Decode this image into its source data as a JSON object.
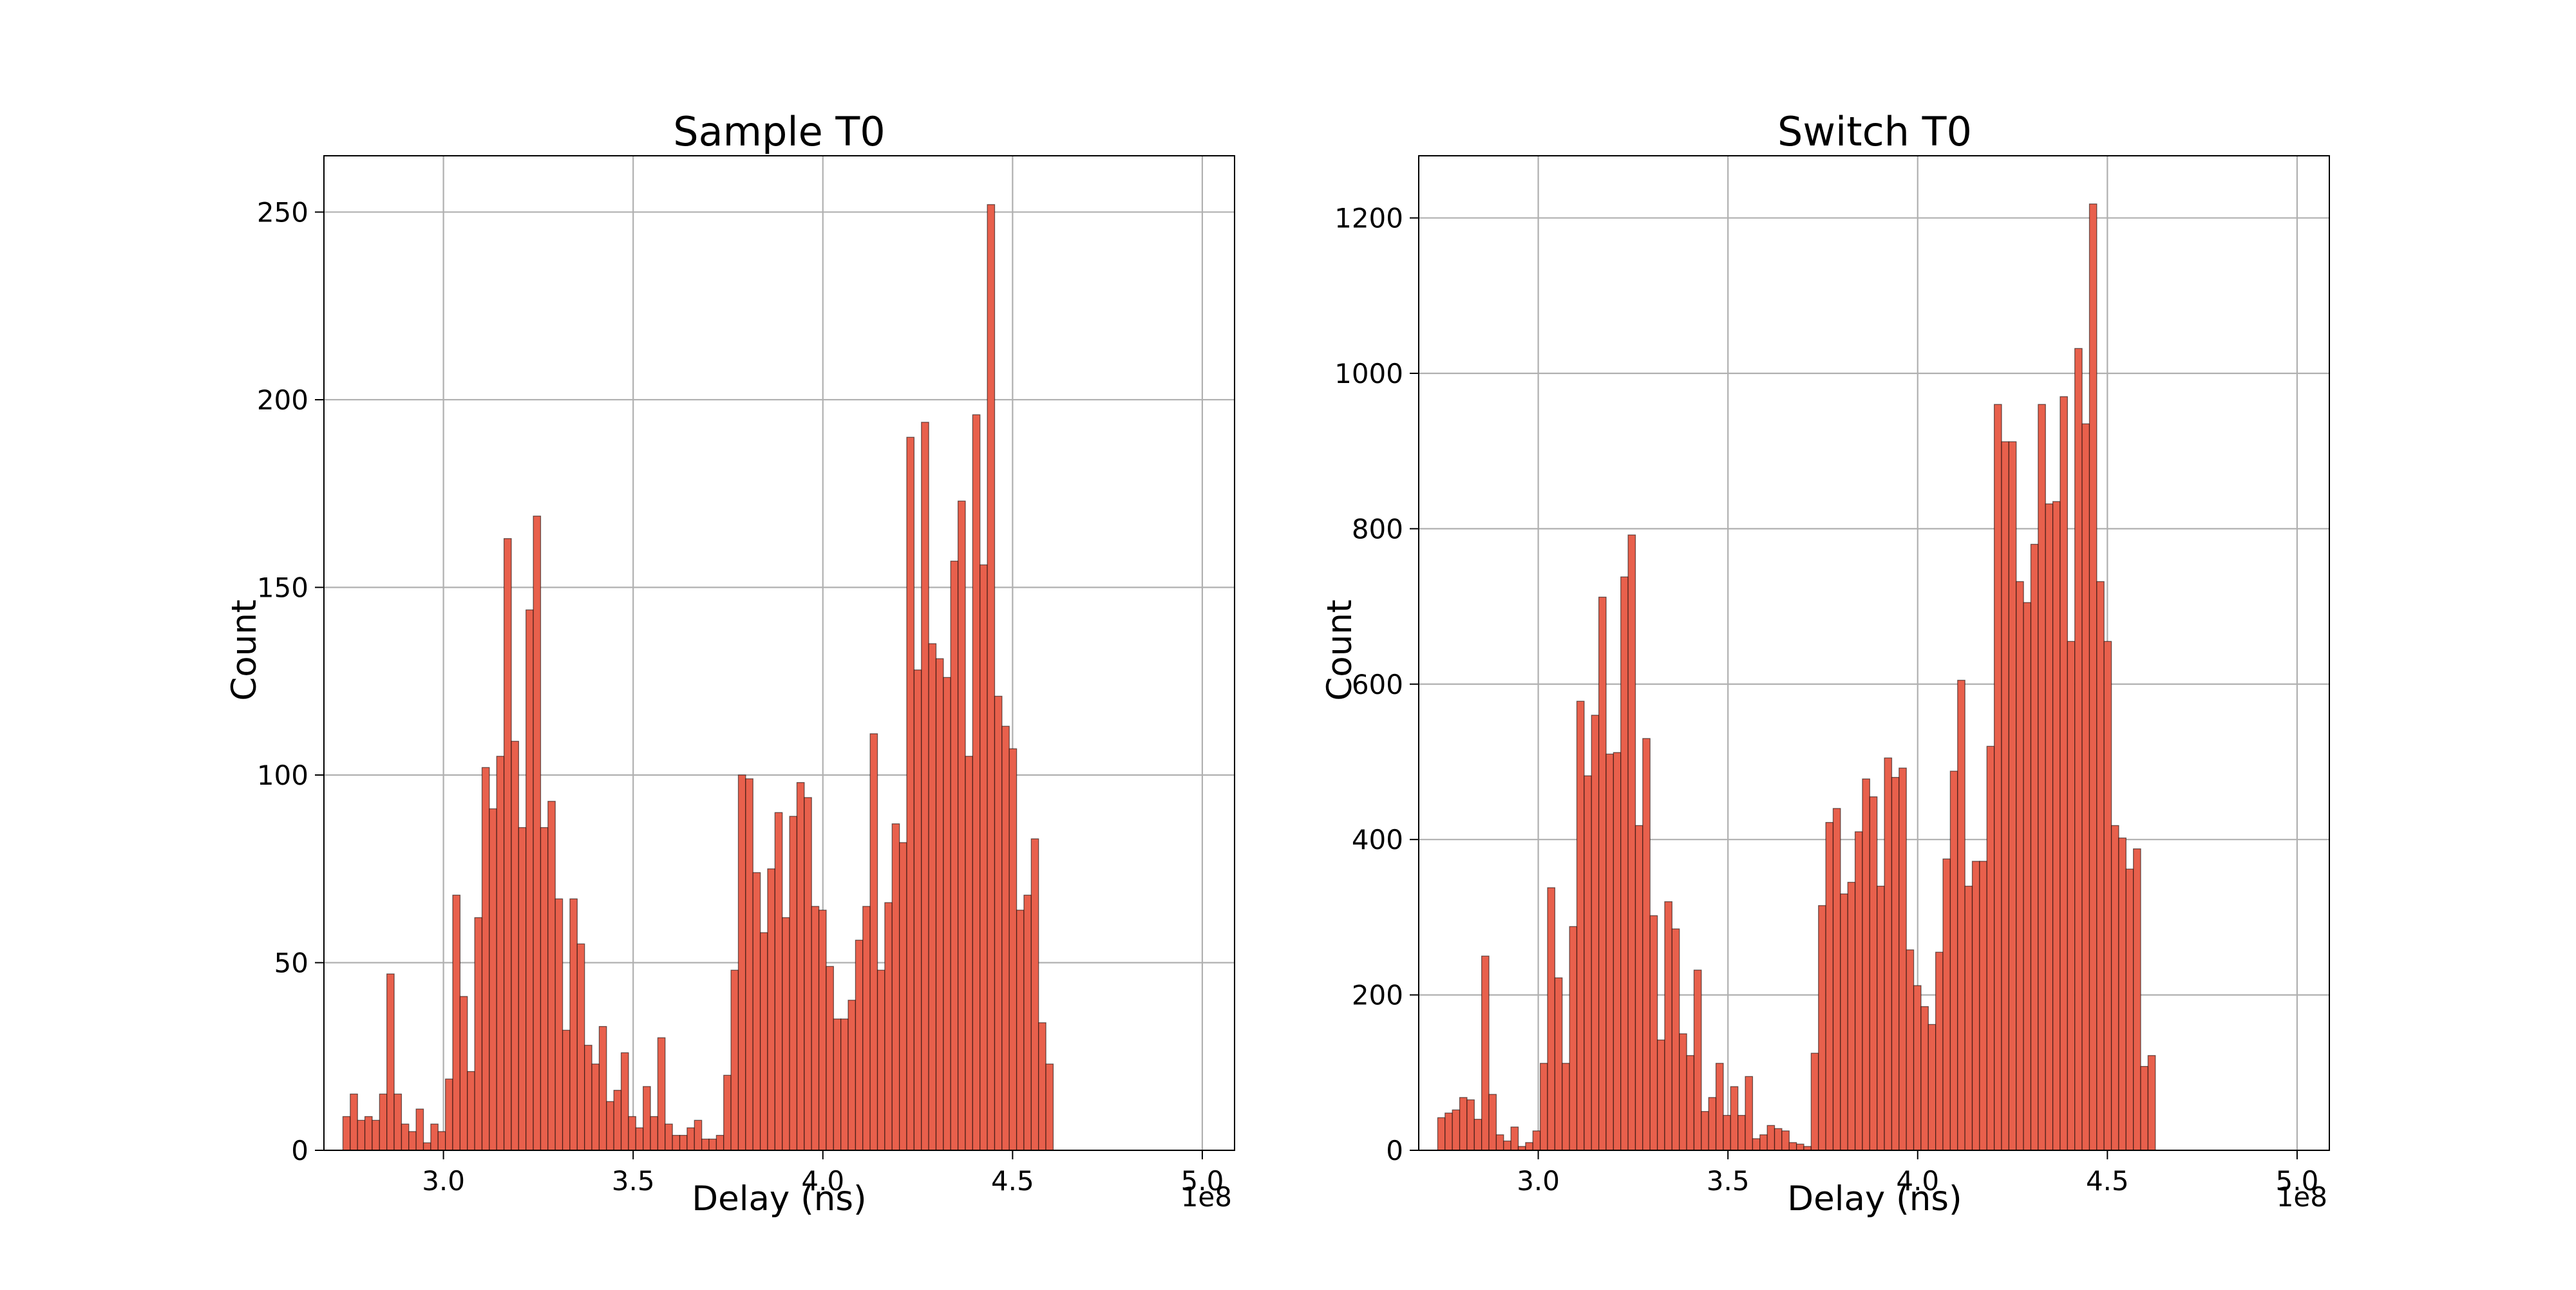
{
  "colors": {
    "bar": "#e8604c"
  },
  "chart_data": [
    {
      "type": "bar",
      "title": "Sample T0",
      "xlabel": "Delay (ns)",
      "ylabel": "Count",
      "x_offset_label": "1e8",
      "xlim": [
        2.685,
        5.085
      ],
      "ylim": [
        0,
        265
      ],
      "grid": true,
      "xticks": [
        3.0,
        3.5,
        4.0,
        4.5,
        5.0
      ],
      "xtick_labels": [
        "3.0",
        "3.5",
        "4.0",
        "4.5",
        "5.0"
      ],
      "yticks": [
        0,
        50,
        100,
        150,
        200,
        250
      ],
      "ytick_labels": [
        "0",
        "50",
        "100",
        "150",
        "200",
        "250"
      ],
      "bin_start": 2.735,
      "bin_width": 0.0193,
      "values": [
        9,
        15,
        8,
        9,
        8,
        15,
        47,
        15,
        7,
        5,
        11,
        2,
        7,
        5,
        19,
        68,
        41,
        21,
        62,
        102,
        91,
        105,
        163,
        109,
        86,
        144,
        169,
        86,
        93,
        67,
        32,
        67,
        55,
        28,
        23,
        33,
        13,
        16,
        26,
        9,
        6,
        17,
        9,
        30,
        7,
        4,
        4,
        6,
        8,
        3,
        3,
        4,
        20,
        48,
        100,
        99,
        74,
        58,
        75,
        90,
        62,
        89,
        98,
        94,
        65,
        64,
        49,
        35,
        35,
        40,
        56,
        65,
        111,
        48,
        66,
        87,
        82,
        190,
        128,
        194,
        135,
        131,
        126,
        157,
        173,
        105,
        196,
        156,
        252,
        121,
        113,
        107,
        64,
        68,
        83,
        34,
        23
      ]
    },
    {
      "type": "bar",
      "title": "Switch T0",
      "xlabel": "Delay (ns)",
      "ylabel": "Count",
      "x_offset_label": "1e8",
      "xlim": [
        2.685,
        5.085
      ],
      "ylim": [
        0,
        1280
      ],
      "grid": true,
      "xticks": [
        3.0,
        3.5,
        4.0,
        4.5,
        5.0
      ],
      "xtick_labels": [
        "3.0",
        "3.5",
        "4.0",
        "4.5",
        "5.0"
      ],
      "yticks": [
        0,
        200,
        400,
        600,
        800,
        1000,
        1200
      ],
      "ytick_labels": [
        "0",
        "200",
        "400",
        "600",
        "800",
        "1000",
        "1200"
      ],
      "bin_start": 2.735,
      "bin_width": 0.0193,
      "values": [
        42,
        48,
        52,
        68,
        65,
        40,
        250,
        72,
        20,
        12,
        30,
        5,
        10,
        25,
        112,
        338,
        222,
        112,
        288,
        578,
        482,
        560,
        712,
        510,
        512,
        738,
        792,
        418,
        530,
        302,
        142,
        320,
        285,
        150,
        122,
        232,
        50,
        68,
        112,
        45,
        82,
        45,
        95,
        15,
        20,
        32,
        28,
        25,
        10,
        8,
        5,
        125,
        315,
        422,
        440,
        330,
        345,
        410,
        478,
        455,
        340,
        505,
        480,
        492,
        258,
        212,
        185,
        162,
        255,
        375,
        488,
        605,
        340,
        372,
        372,
        520,
        960,
        912,
        912,
        732,
        705,
        780,
        960,
        832,
        835,
        970,
        655,
        1032,
        935,
        1218,
        732,
        655,
        418,
        402,
        362,
        388,
        108,
        122
      ]
    }
  ]
}
